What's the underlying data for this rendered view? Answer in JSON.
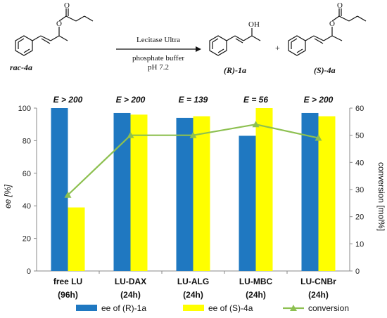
{
  "scheme": {
    "reagent": "Lecitase Ultra",
    "conditions_line1": "phosphate buffer",
    "conditions_line2": "pH 7.2",
    "substrate_label": "rac-4a",
    "product1_label": "(R)-1a",
    "product2_label": "(S)-4a",
    "oh_label": "OH",
    "o_label": "O",
    "plus": "+"
  },
  "chart_data": {
    "type": "bar",
    "categories": [
      "free LU",
      "LU-DAX",
      "LU-ALG",
      "LU-MBC",
      "LU-CNBr"
    ],
    "category_sublabels": [
      "(96h)",
      "(24h)",
      "(24h)",
      "(24h)",
      "(24h)"
    ],
    "e_values": [
      "E > 200",
      "E > 200",
      "E = 139",
      "E = 56",
      "E > 200"
    ],
    "series": [
      {
        "name": "ee of (R)-1a",
        "type": "bar",
        "axis": "left",
        "color": "#1f78c1",
        "values": [
          100,
          97,
          94,
          83,
          97
        ]
      },
      {
        "name": "ee of (S)-4a",
        "type": "bar",
        "axis": "left",
        "color": "#ffff00",
        "values": [
          39,
          96,
          95,
          100,
          95
        ]
      },
      {
        "name": "conversion",
        "type": "line",
        "axis": "right",
        "color": "#8dc050",
        "values": [
          28,
          50,
          50,
          54,
          49
        ]
      }
    ],
    "ylabel": "ee [%]",
    "y2label": "conversion [mol%]",
    "ylim": [
      0,
      100
    ],
    "y2lim": [
      0,
      60
    ],
    "yticks": [
      0,
      20,
      40,
      60,
      80,
      100
    ],
    "y2ticks": [
      0,
      10,
      20,
      30,
      40,
      50,
      60
    ],
    "grid": false,
    "legend_position": "bottom"
  }
}
